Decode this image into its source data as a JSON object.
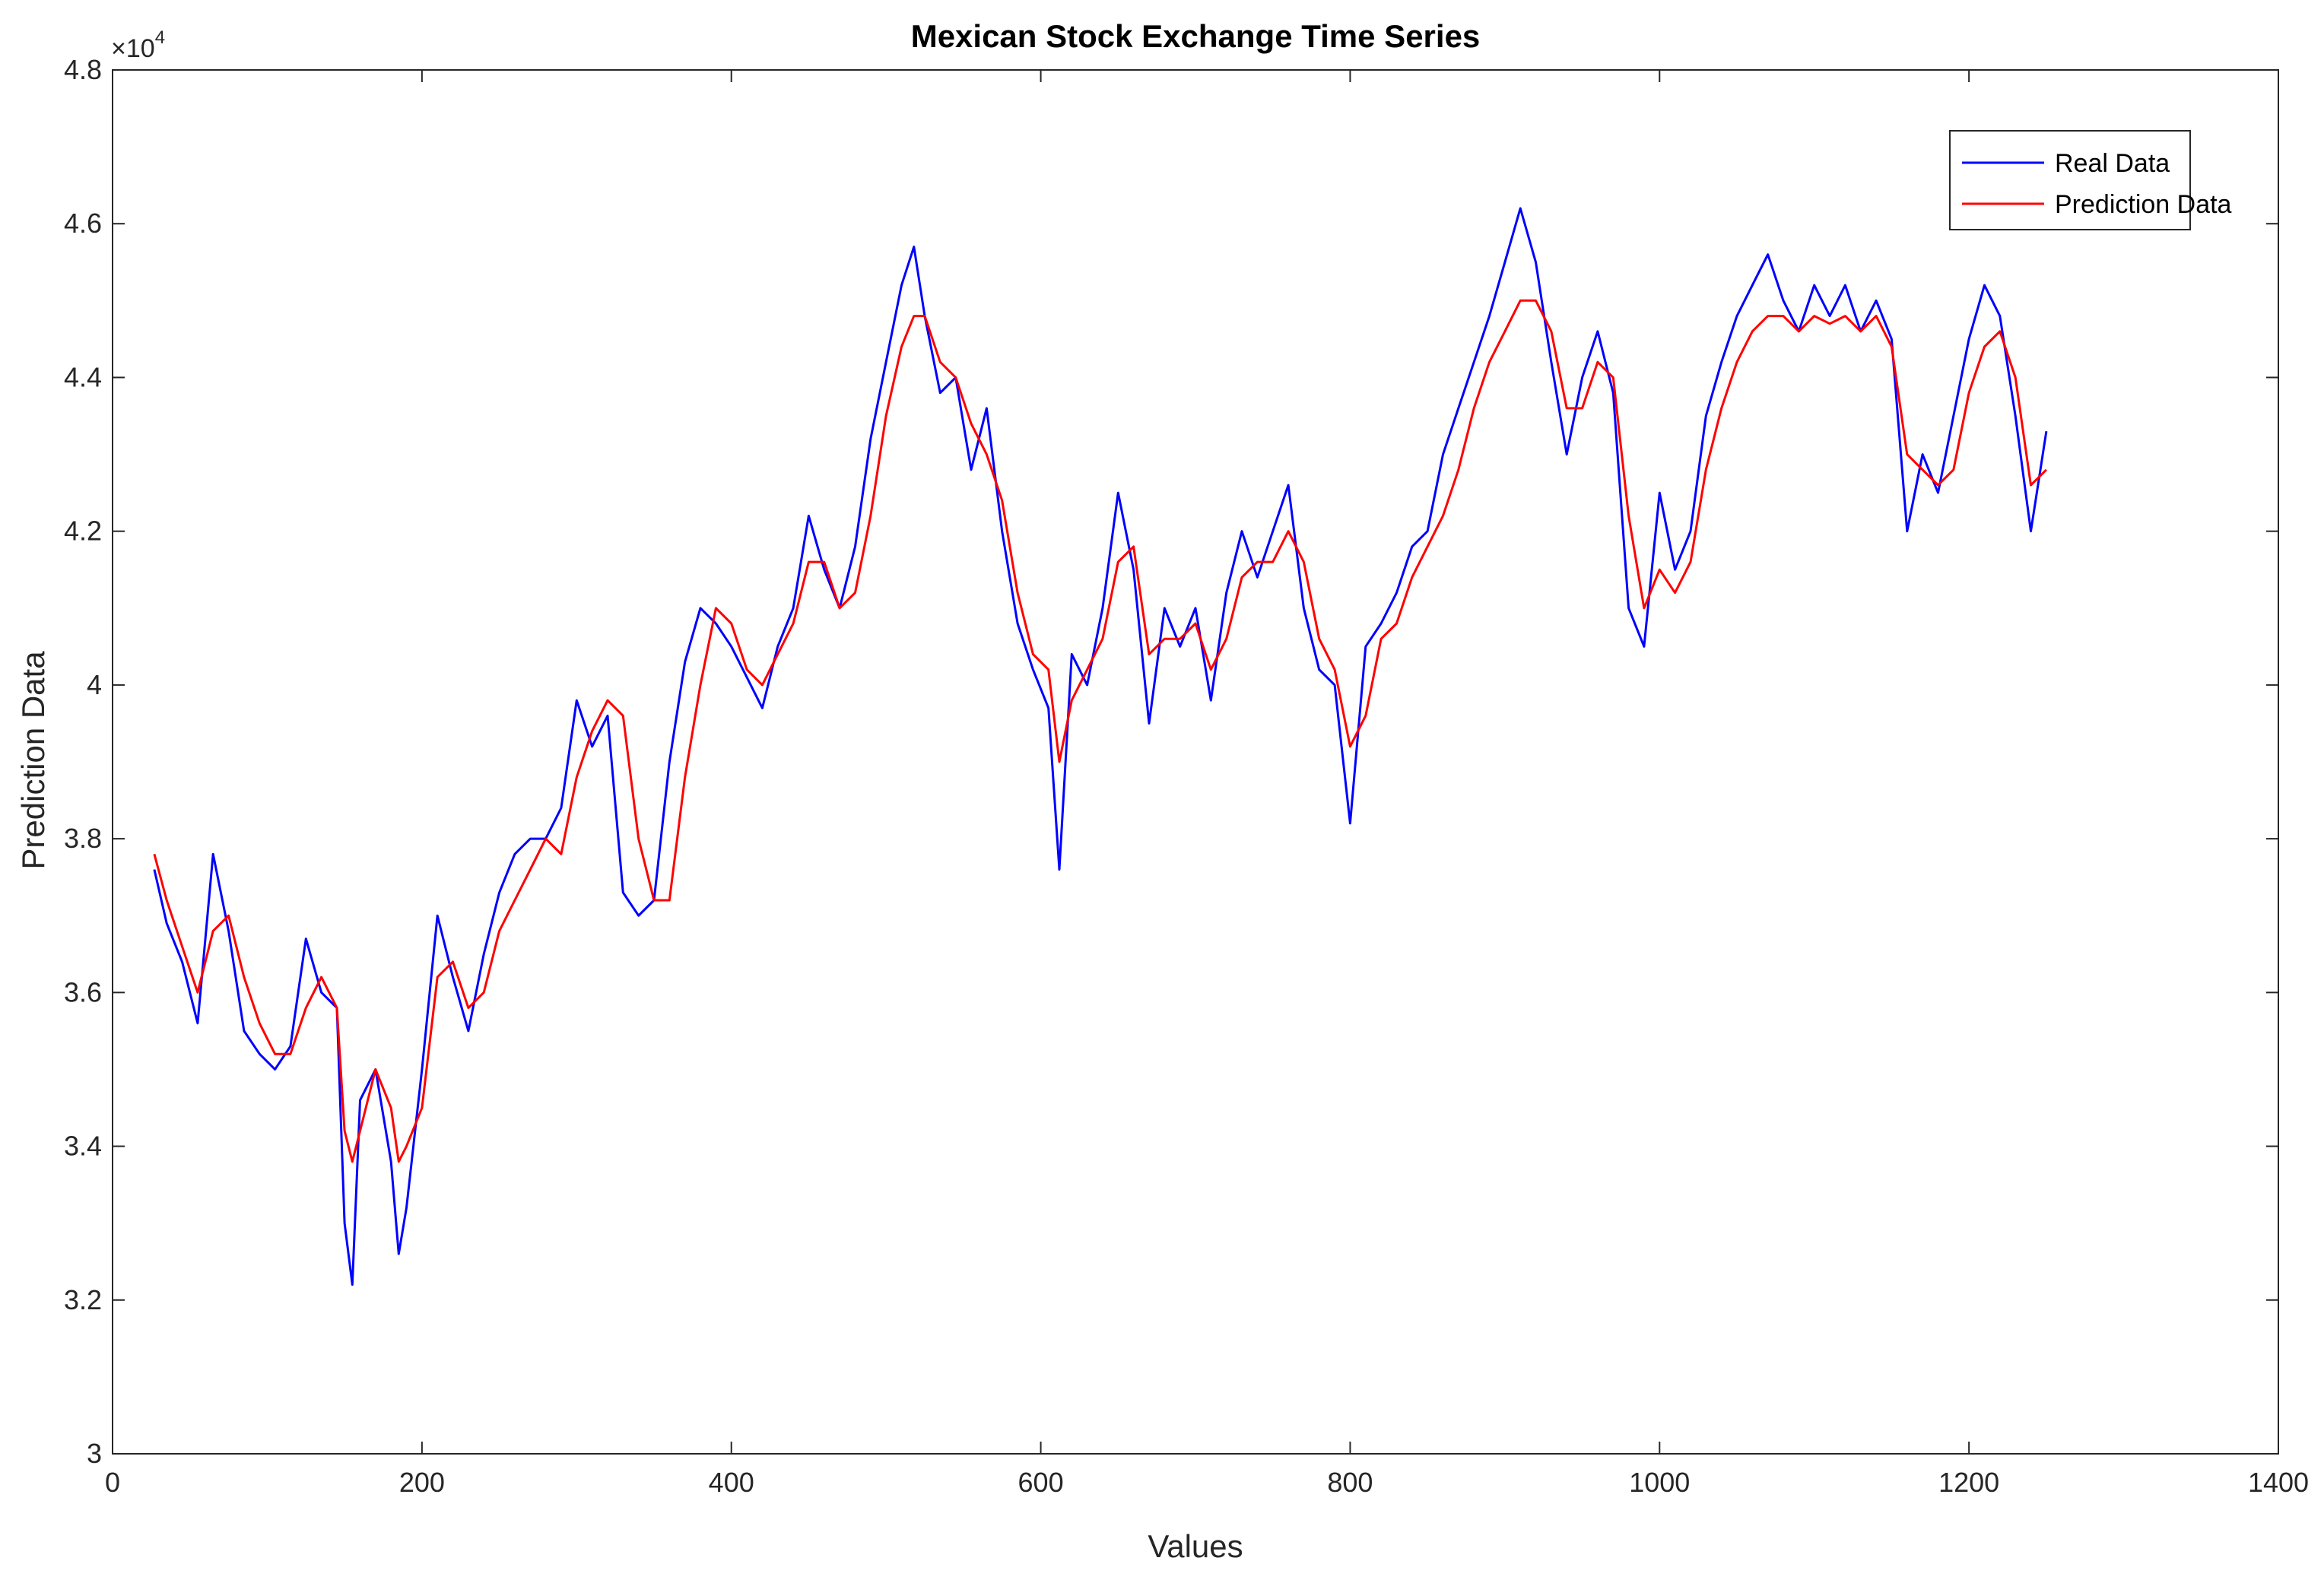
{
  "chart_data": {
    "type": "line",
    "title": "Mexican Stock Exchange Time Series",
    "xlabel": "Values",
    "ylabel": "Prediction Data",
    "y_exponent_base": "×10",
    "y_exponent_power": "4",
    "xlim": [
      0,
      1400
    ],
    "ylim": [
      3.0,
      4.8
    ],
    "xticks": [
      "0",
      "200",
      "400",
      "600",
      "800",
      "1000",
      "1200",
      "1400"
    ],
    "yticks": [
      "3",
      "3.2",
      "3.4",
      "3.6",
      "3.8",
      "4",
      "4.2",
      "4.4",
      "4.6",
      "4.8"
    ],
    "grid": false,
    "legend_position": "top-right",
    "series": [
      {
        "name": "Real Data",
        "color": "#0000ff",
        "x": [
          27,
          35,
          45,
          55,
          65,
          75,
          85,
          95,
          105,
          115,
          125,
          135,
          145,
          150,
          155,
          160,
          170,
          180,
          185,
          190,
          200,
          210,
          220,
          230,
          240,
          250,
          260,
          270,
          280,
          290,
          300,
          310,
          320,
          330,
          340,
          350,
          360,
          370,
          380,
          390,
          400,
          410,
          420,
          430,
          440,
          450,
          460,
          470,
          480,
          490,
          500,
          510,
          518,
          525,
          535,
          545,
          555,
          565,
          575,
          585,
          595,
          605,
          612,
          620,
          630,
          640,
          650,
          660,
          670,
          680,
          690,
          700,
          710,
          720,
          730,
          740,
          750,
          760,
          770,
          780,
          790,
          800,
          810,
          820,
          830,
          840,
          850,
          860,
          870,
          880,
          890,
          900,
          910,
          920,
          930,
          940,
          950,
          960,
          970,
          980,
          990,
          1000,
          1010,
          1020,
          1030,
          1040,
          1050,
          1060,
          1070,
          1080,
          1090,
          1100,
          1110,
          1120,
          1130,
          1140,
          1150,
          1160,
          1170,
          1180,
          1190,
          1200,
          1210,
          1220,
          1230,
          1240,
          1250
        ],
        "y": [
          3.76,
          3.69,
          3.64,
          3.56,
          3.78,
          3.68,
          3.55,
          3.52,
          3.5,
          3.53,
          3.67,
          3.6,
          3.58,
          3.3,
          3.22,
          3.46,
          3.5,
          3.38,
          3.26,
          3.32,
          3.5,
          3.7,
          3.62,
          3.55,
          3.65,
          3.73,
          3.78,
          3.8,
          3.8,
          3.84,
          3.98,
          3.92,
          3.96,
          3.73,
          3.7,
          3.72,
          3.9,
          4.03,
          4.1,
          4.08,
          4.05,
          4.01,
          3.97,
          4.05,
          4.1,
          4.22,
          4.15,
          4.1,
          4.18,
          4.32,
          4.42,
          4.52,
          4.57,
          4.48,
          4.38,
          4.4,
          4.28,
          4.36,
          4.2,
          4.08,
          4.02,
          3.97,
          3.76,
          4.04,
          4.0,
          4.1,
          4.25,
          4.15,
          3.95,
          4.1,
          4.05,
          4.1,
          3.98,
          4.12,
          4.2,
          4.14,
          4.2,
          4.26,
          4.1,
          4.02,
          4.0,
          3.82,
          4.05,
          4.08,
          4.12,
          4.18,
          4.2,
          4.3,
          4.36,
          4.42,
          4.48,
          4.55,
          4.62,
          4.55,
          4.42,
          4.3,
          4.4,
          4.46,
          4.38,
          4.1,
          4.05,
          4.25,
          4.15,
          4.2,
          4.35,
          4.42,
          4.48,
          4.52,
          4.56,
          4.5,
          4.46,
          4.52,
          4.48,
          4.52,
          4.46,
          4.5,
          4.45,
          4.2,
          4.3,
          4.25,
          4.35,
          4.45,
          4.52,
          4.48,
          4.35,
          4.2,
          4.33
        ]
      },
      {
        "name": "Prediction Data",
        "color": "#ff0000",
        "x": [
          27,
          35,
          45,
          55,
          65,
          75,
          85,
          95,
          105,
          115,
          125,
          135,
          145,
          150,
          155,
          160,
          170,
          180,
          185,
          190,
          200,
          210,
          220,
          230,
          240,
          250,
          260,
          270,
          280,
          290,
          300,
          310,
          320,
          330,
          340,
          350,
          360,
          370,
          380,
          390,
          400,
          410,
          420,
          430,
          440,
          450,
          460,
          470,
          480,
          490,
          500,
          510,
          518,
          525,
          535,
          545,
          555,
          565,
          575,
          585,
          595,
          605,
          612,
          620,
          630,
          640,
          650,
          660,
          670,
          680,
          690,
          700,
          710,
          720,
          730,
          740,
          750,
          760,
          770,
          780,
          790,
          800,
          810,
          820,
          830,
          840,
          850,
          860,
          870,
          880,
          890,
          900,
          910,
          920,
          930,
          940,
          950,
          960,
          970,
          980,
          990,
          1000,
          1010,
          1020,
          1030,
          1040,
          1050,
          1060,
          1070,
          1080,
          1090,
          1100,
          1110,
          1120,
          1130,
          1140,
          1150,
          1160,
          1170,
          1180,
          1190,
          1200,
          1210,
          1220,
          1230,
          1240,
          1250
        ],
        "y": [
          3.78,
          3.72,
          3.66,
          3.6,
          3.68,
          3.7,
          3.62,
          3.56,
          3.52,
          3.52,
          3.58,
          3.62,
          3.58,
          3.42,
          3.38,
          3.42,
          3.5,
          3.45,
          3.38,
          3.4,
          3.45,
          3.62,
          3.64,
          3.58,
          3.6,
          3.68,
          3.72,
          3.76,
          3.8,
          3.78,
          3.88,
          3.94,
          3.98,
          3.96,
          3.8,
          3.72,
          3.72,
          3.88,
          4.0,
          4.1,
          4.08,
          4.02,
          4.0,
          4.04,
          4.08,
          4.16,
          4.16,
          4.1,
          4.12,
          4.22,
          4.35,
          4.44,
          4.48,
          4.48,
          4.42,
          4.4,
          4.34,
          4.3,
          4.24,
          4.12,
          4.04,
          4.02,
          3.9,
          3.98,
          4.02,
          4.06,
          4.16,
          4.18,
          4.04,
          4.06,
          4.06,
          4.08,
          4.02,
          4.06,
          4.14,
          4.16,
          4.16,
          4.2,
          4.16,
          4.06,
          4.02,
          3.92,
          3.96,
          4.06,
          4.08,
          4.14,
          4.18,
          4.22,
          4.28,
          4.36,
          4.42,
          4.46,
          4.5,
          4.5,
          4.46,
          4.36,
          4.36,
          4.42,
          4.4,
          4.22,
          4.1,
          4.15,
          4.12,
          4.16,
          4.28,
          4.36,
          4.42,
          4.46,
          4.48,
          4.48,
          4.46,
          4.48,
          4.47,
          4.48,
          4.46,
          4.48,
          4.44,
          4.3,
          4.28,
          4.26,
          4.28,
          4.38,
          4.44,
          4.46,
          4.4,
          4.26,
          4.28
        ]
      }
    ]
  }
}
